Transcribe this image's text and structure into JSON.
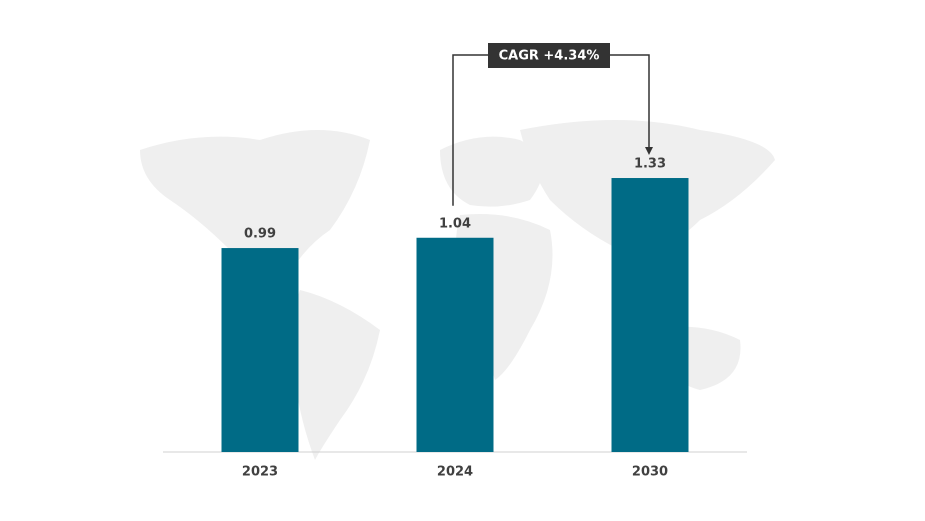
{
  "chart_data": {
    "type": "bar",
    "categories": [
      "2023",
      "2024",
      "2030"
    ],
    "values": [
      0.99,
      1.04,
      1.33
    ],
    "color": "#006b86",
    "annotation": "CAGR +4.34%"
  }
}
